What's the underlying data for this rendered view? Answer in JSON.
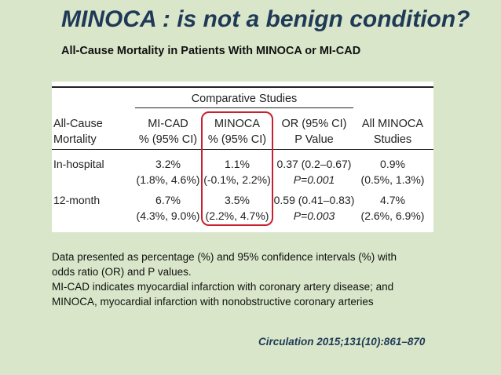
{
  "title": "MINOCA : is not a benign condition?",
  "subtitle": "All-Cause Mortality in Patients With MINOCA or MI-CAD",
  "table": {
    "group_header": "Comparative Studies",
    "row_header": [
      "All-Cause",
      "Mortality"
    ],
    "columns": [
      {
        "line1": "MI-CAD",
        "line2": "% (95% CI)"
      },
      {
        "line1": "MINOCA",
        "line2": "% (95% CI)"
      },
      {
        "line1": "OR (95% CI)",
        "line2": "P Value"
      },
      {
        "line1": "All MINOCA",
        "line2": "Studies"
      }
    ],
    "rows": [
      {
        "label": "In-hospital",
        "mi_cad": {
          "value": "3.2%",
          "ci": "(1.8%, 4.6%)"
        },
        "minoca": {
          "value": "1.1%",
          "ci": "(-0.1%, 2.2%)"
        },
        "or": {
          "value": "0.37 (0.2–0.67)",
          "p": "P=0.001"
        },
        "all_minoca": {
          "value": "0.9%",
          "ci": "(0.5%, 1.3%)"
        }
      },
      {
        "label": "12-month",
        "mi_cad": {
          "value": "6.7%",
          "ci": "(4.3%, 9.0%)"
        },
        "minoca": {
          "value": "3.5%",
          "ci": "(2.2%, 4.7%)"
        },
        "or": {
          "value": "0.59 (0.41–0.83)",
          "p": "P=0.003"
        },
        "all_minoca": {
          "value": "4.7%",
          "ci": "(2.6%, 6.9%)"
        }
      }
    ],
    "highlight_color": "#c8202e"
  },
  "notes": [
    "Data presented as percentage (%) and 95% confidence intervals (%) with",
    "odds ratio (OR) and P values.",
    "MI-CAD indicates myocardial infarction with coronary artery disease; and",
    "MINOCA, myocardial infarction with nonobstructive coronary arteries"
  ],
  "citation": "Circulation 2015;131(10):861–870"
}
